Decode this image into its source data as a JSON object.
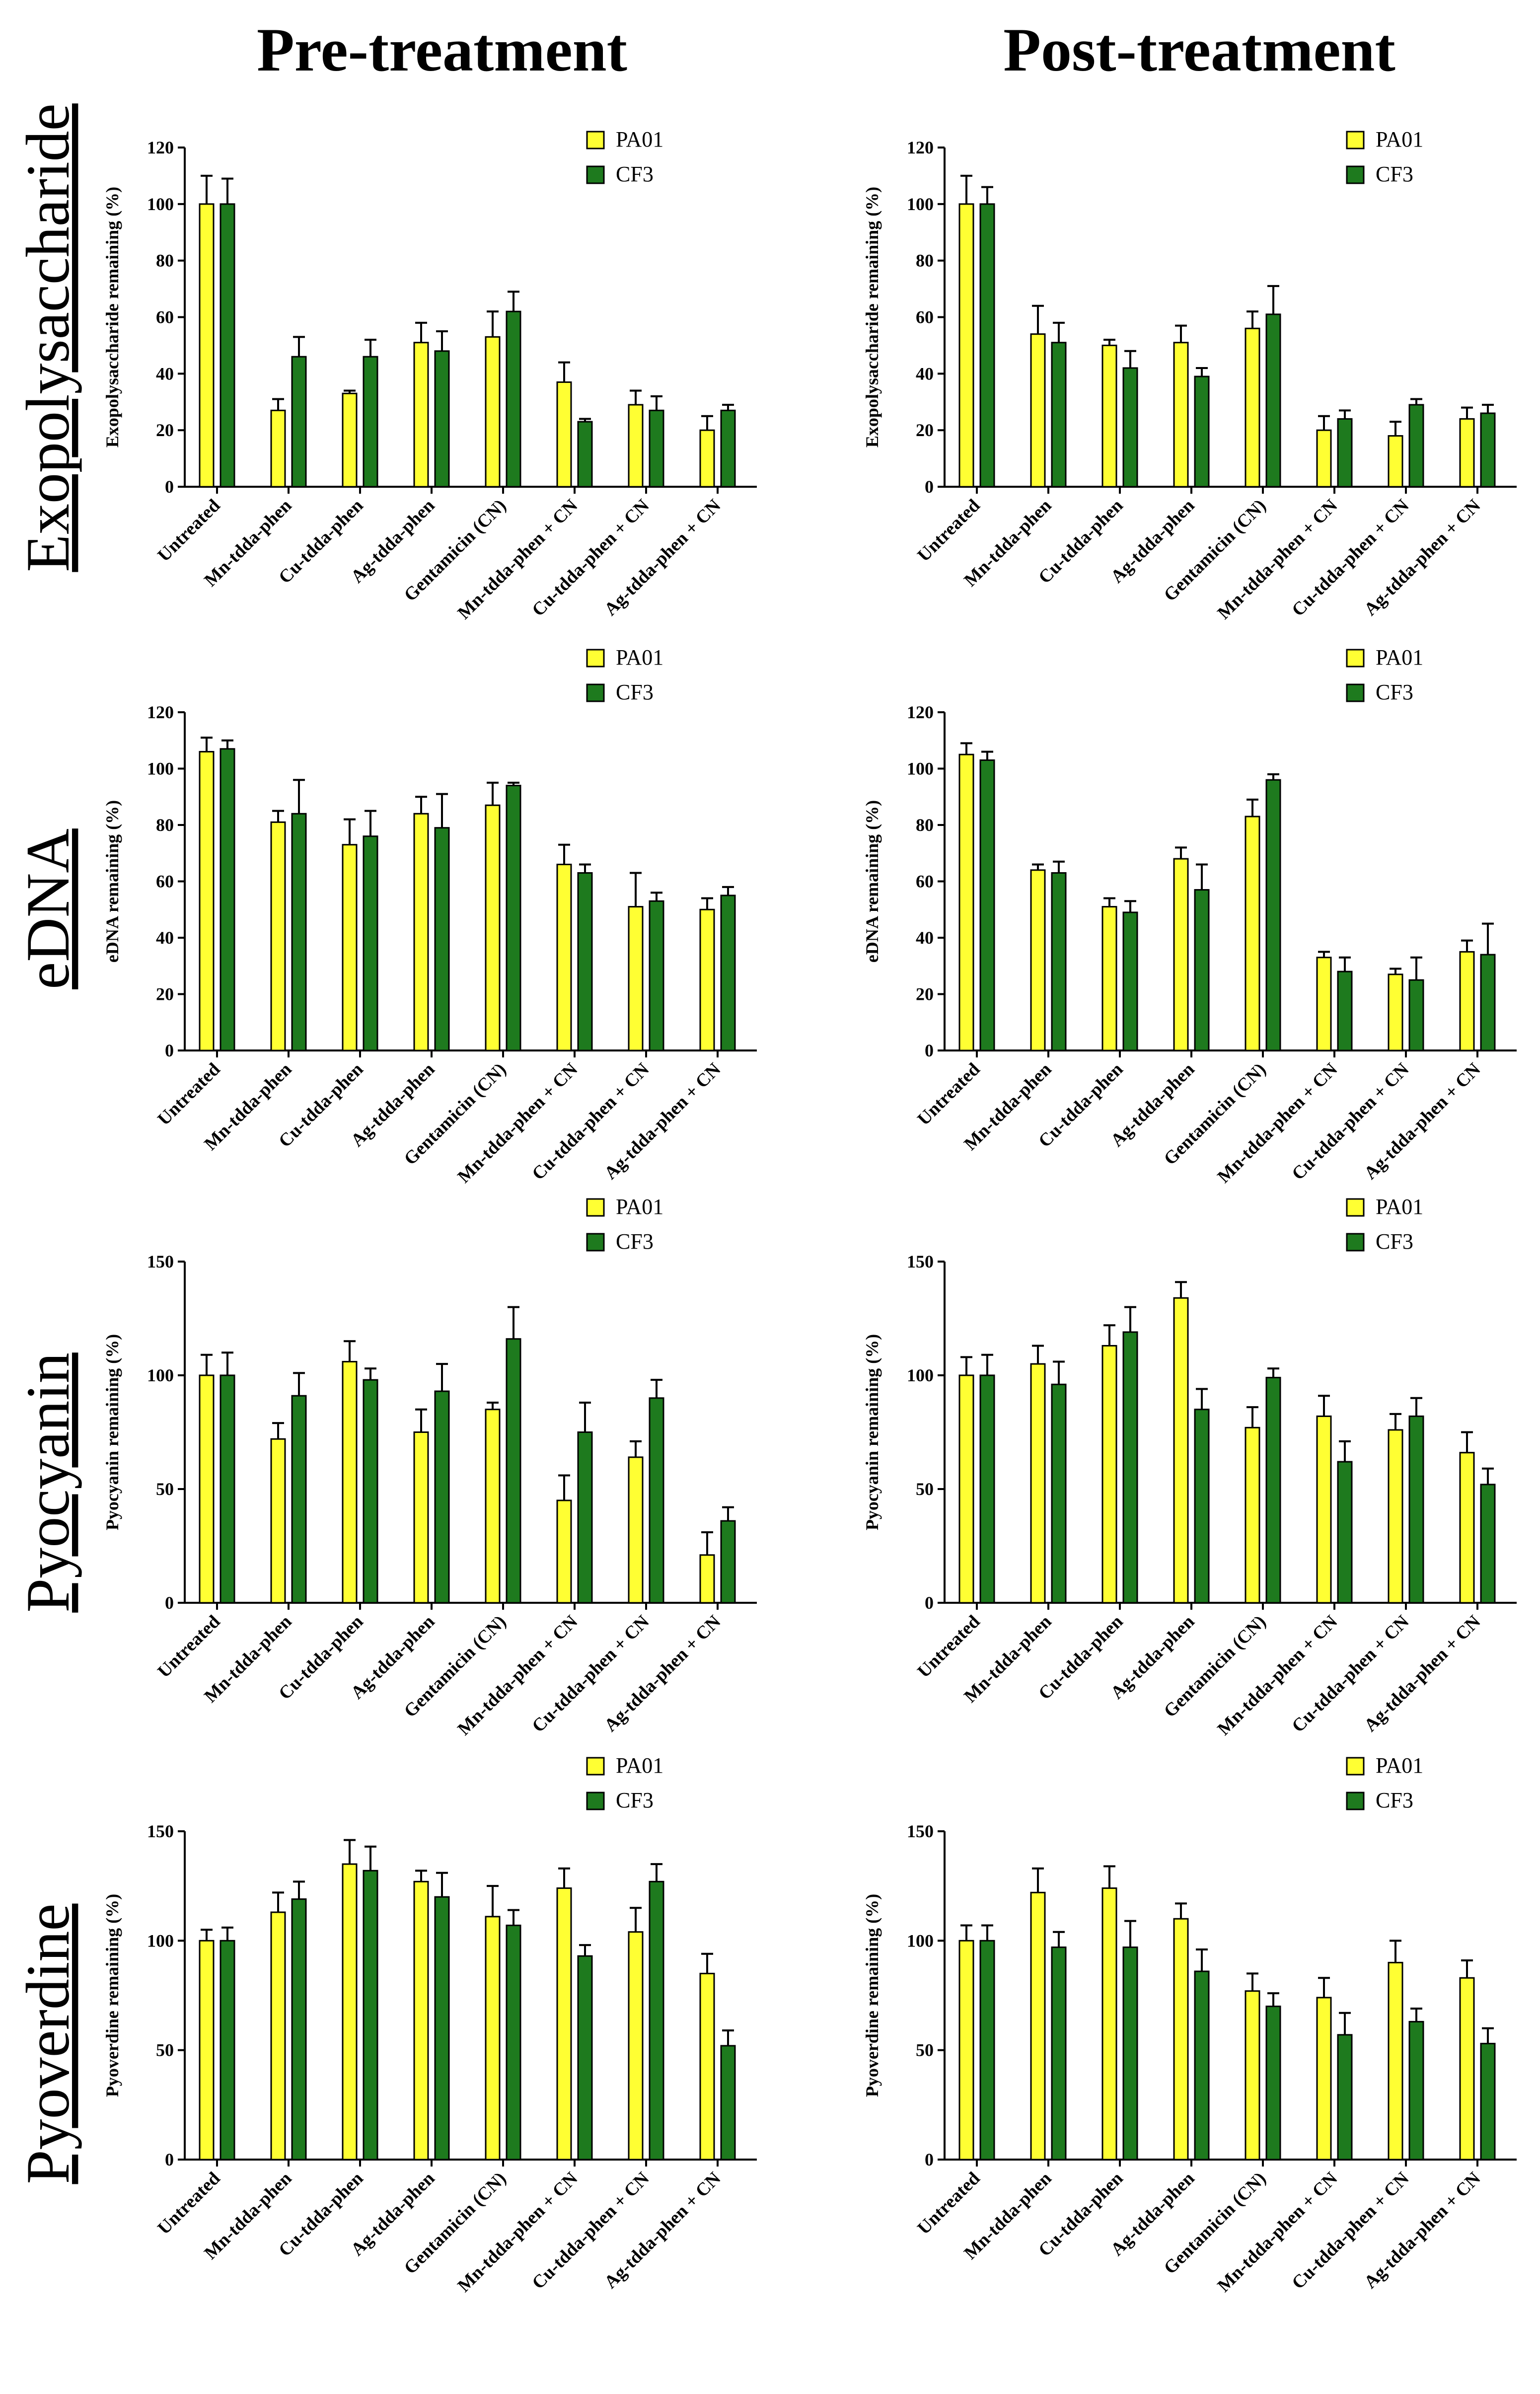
{
  "column_titles": [
    "Pre-treatment",
    "Post-treatment"
  ],
  "row_labels": [
    "Exopolysaccharide",
    "eDNA",
    "Pyocyanin",
    "Pyoverdine"
  ],
  "colors": {
    "PA01": "#ffff33",
    "CF3": "#1e7a1e",
    "axis": "#000000"
  },
  "chart_data": [
    {
      "type": "bar",
      "title": "Pre-treatment",
      "row": "Exopolysaccharide",
      "ylabel": "Exopolysaccharide remaining (%)",
      "xlabel": "",
      "ylim": [
        0,
        120
      ],
      "yticks": [
        0,
        20,
        40,
        60,
        80,
        100,
        120
      ],
      "categories": [
        "Untreated",
        "Mn-tdda-phen",
        "Cu-tdda-phen",
        "Ag-tdda-phen",
        "Gentamicin (CN)",
        "Mn-tdda-phen + CN",
        "Cu-tdda-phen + CN",
        "Ag-tdda-phen + CN"
      ],
      "series": [
        {
          "name": "PA01",
          "values": [
            100,
            27,
            33,
            51,
            53,
            37,
            29,
            20
          ],
          "errors": [
            10,
            4,
            1,
            7,
            9,
            7,
            5,
            5
          ]
        },
        {
          "name": "CF3",
          "values": [
            100,
            46,
            46,
            48,
            62,
            23,
            27,
            27
          ],
          "errors": [
            9,
            7,
            6,
            7,
            7,
            1,
            5,
            2
          ]
        }
      ]
    },
    {
      "type": "bar",
      "title": "Post-treatment",
      "row": "Exopolysaccharide",
      "ylabel": "Exopolysaccharide remaining (%)",
      "xlabel": "",
      "ylim": [
        0,
        120
      ],
      "yticks": [
        0,
        20,
        40,
        60,
        80,
        100,
        120
      ],
      "categories": [
        "Untreated",
        "Mn-tdda-phen",
        "Cu-tdda-phen",
        "Ag-tdda-phen",
        "Gentamicin (CN)",
        "Mn-tdda-phen + CN",
        "Cu-tdda-phen + CN",
        "Ag-tdda-phen + CN"
      ],
      "series": [
        {
          "name": "PA01",
          "values": [
            100,
            54,
            50,
            51,
            56,
            20,
            18,
            24
          ],
          "errors": [
            10,
            10,
            2,
            6,
            6,
            5,
            5,
            4
          ]
        },
        {
          "name": "CF3",
          "values": [
            100,
            51,
            42,
            39,
            61,
            24,
            29,
            26
          ],
          "errors": [
            6,
            7,
            6,
            3,
            10,
            3,
            2,
            3
          ]
        }
      ]
    },
    {
      "type": "bar",
      "title": "Pre-treatment",
      "row": "eDNA",
      "ylabel": "eDNA remaining (%)",
      "xlabel": "",
      "ylim": [
        0,
        120
      ],
      "yticks": [
        0,
        20,
        40,
        60,
        80,
        100,
        120
      ],
      "categories": [
        "Untreated",
        "Mn-tdda-phen",
        "Cu-tdda-phen",
        "Ag-tdda-phen",
        "Gentamicin (CN)",
        "Mn-tdda-phen + CN",
        "Cu-tdda-phen + CN",
        "Ag-tdda-phen + CN"
      ],
      "series": [
        {
          "name": "PA01",
          "values": [
            106,
            81,
            73,
            84,
            87,
            66,
            51,
            50
          ],
          "errors": [
            5,
            4,
            9,
            6,
            8,
            7,
            12,
            4
          ]
        },
        {
          "name": "CF3",
          "values": [
            107,
            84,
            76,
            79,
            94,
            63,
            53,
            55
          ],
          "errors": [
            3,
            12,
            9,
            12,
            1,
            3,
            3,
            3
          ]
        }
      ]
    },
    {
      "type": "bar",
      "title": "Post-treatment",
      "row": "eDNA",
      "ylabel": "eDNA remaining (%)",
      "xlabel": "",
      "ylim": [
        0,
        120
      ],
      "yticks": [
        0,
        20,
        40,
        60,
        80,
        100,
        120
      ],
      "categories": [
        "Untreated",
        "Mn-tdda-phen",
        "Cu-tdda-phen",
        "Ag-tdda-phen",
        "Gentamicin (CN)",
        "Mn-tdda-phen + CN",
        "Cu-tdda-phen + CN",
        "Ag-tdda-phen + CN"
      ],
      "series": [
        {
          "name": "PA01",
          "values": [
            105,
            64,
            51,
            68,
            83,
            33,
            27,
            35
          ],
          "errors": [
            4,
            2,
            3,
            4,
            6,
            2,
            2,
            4
          ]
        },
        {
          "name": "CF3",
          "values": [
            103,
            63,
            49,
            57,
            96,
            28,
            25,
            34
          ],
          "errors": [
            3,
            4,
            4,
            9,
            2,
            5,
            8,
            11
          ]
        }
      ]
    },
    {
      "type": "bar",
      "title": "Pre-treatment",
      "row": "Pyocyanin",
      "ylabel": "Pyocyanin remaining (%)",
      "xlabel": "",
      "ylim": [
        0,
        150
      ],
      "yticks": [
        0,
        50,
        100,
        150
      ],
      "categories": [
        "Untreated",
        "Mn-tdda-phen",
        "Cu-tdda-phen",
        "Ag-tdda-phen",
        "Gentamicin (CN)",
        "Mn-tdda-phen + CN",
        "Cu-tdda-phen + CN",
        "Ag-tdda-phen + CN"
      ],
      "series": [
        {
          "name": "PA01",
          "values": [
            100,
            72,
            106,
            75,
            85,
            45,
            64,
            21
          ],
          "errors": [
            9,
            7,
            9,
            10,
            3,
            11,
            7,
            10
          ]
        },
        {
          "name": "CF3",
          "values": [
            100,
            91,
            98,
            93,
            116,
            75,
            90,
            36
          ],
          "errors": [
            10,
            10,
            5,
            12,
            14,
            13,
            8,
            6
          ]
        }
      ]
    },
    {
      "type": "bar",
      "title": "Post-treatment",
      "row": "Pyocyanin",
      "ylabel": "Pyocyanin remaining (%)",
      "xlabel": "",
      "ylim": [
        0,
        150
      ],
      "yticks": [
        0,
        50,
        100,
        150
      ],
      "categories": [
        "Untreated",
        "Mn-tdda-phen",
        "Cu-tdda-phen",
        "Ag-tdda-phen",
        "Gentamicin (CN)",
        "Mn-tdda-phen + CN",
        "Cu-tdda-phen + CN",
        "Ag-tdda-phen + CN"
      ],
      "series": [
        {
          "name": "PA01",
          "values": [
            100,
            105,
            113,
            134,
            77,
            82,
            76,
            66
          ],
          "errors": [
            8,
            8,
            9,
            7,
            9,
            9,
            7,
            9
          ]
        },
        {
          "name": "CF3",
          "values": [
            100,
            96,
            119,
            85,
            99,
            62,
            82,
            52
          ],
          "errors": [
            9,
            10,
            11,
            9,
            4,
            9,
            8,
            7
          ]
        }
      ]
    },
    {
      "type": "bar",
      "title": "Pre-treatment",
      "row": "Pyoverdine",
      "ylabel": "Pyoverdine remaining (%)",
      "xlabel": "",
      "ylim": [
        0,
        150
      ],
      "yticks": [
        0,
        50,
        100,
        150
      ],
      "categories": [
        "Untreated",
        "Mn-tdda-phen",
        "Cu-tdda-phen",
        "Ag-tdda-phen",
        "Gentamicin (CN)",
        "Mn-tdda-phen + CN",
        "Cu-tdda-phen + CN",
        "Ag-tdda-phen + CN"
      ],
      "series": [
        {
          "name": "PA01",
          "values": [
            100,
            113,
            135,
            127,
            111,
            124,
            104,
            85
          ],
          "errors": [
            5,
            9,
            11,
            5,
            14,
            9,
            11,
            9
          ]
        },
        {
          "name": "CF3",
          "values": [
            100,
            119,
            132,
            120,
            107,
            93,
            127,
            52
          ],
          "errors": [
            6,
            8,
            11,
            11,
            7,
            5,
            8,
            7
          ]
        }
      ]
    },
    {
      "type": "bar",
      "title": "Post-treatment",
      "row": "Pyoverdine",
      "ylabel": "Pyoverdine remaining (%)",
      "xlabel": "",
      "ylim": [
        0,
        150
      ],
      "yticks": [
        0,
        50,
        100,
        150
      ],
      "categories": [
        "Untreated",
        "Mn-tdda-phen",
        "Cu-tdda-phen",
        "Ag-tdda-phen",
        "Gentamicin (CN)",
        "Mn-tdda-phen + CN",
        "Cu-tdda-phen + CN",
        "Ag-tdda-phen + CN"
      ],
      "series": [
        {
          "name": "PA01",
          "values": [
            100,
            122,
            124,
            110,
            77,
            74,
            90,
            83
          ],
          "errors": [
            7,
            11,
            10,
            7,
            8,
            9,
            10,
            8
          ]
        },
        {
          "name": "CF3",
          "values": [
            100,
            97,
            97,
            86,
            70,
            57,
            63,
            53
          ],
          "errors": [
            7,
            7,
            12,
            10,
            6,
            10,
            6,
            7
          ]
        }
      ]
    }
  ]
}
